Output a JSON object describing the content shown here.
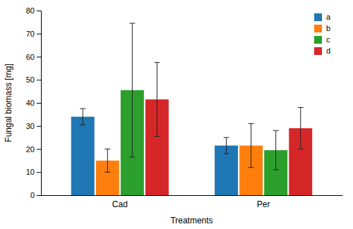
{
  "chart_data": {
    "type": "bar",
    "xlabel": "Treatments",
    "ylabel": "Fungal biomass [mg]",
    "categories": [
      "Cad",
      "Per"
    ],
    "series": [
      {
        "name": "a",
        "values": [
          34.0,
          21.5
        ],
        "errors": [
          3.5,
          3.5
        ]
      },
      {
        "name": "b",
        "values": [
          15.0,
          21.5
        ],
        "errors": [
          5.0,
          9.5
        ]
      },
      {
        "name": "c",
        "values": [
          45.5,
          19.5
        ],
        "errors": [
          29.0,
          8.5
        ]
      },
      {
        "name": "d",
        "values": [
          41.5,
          29.0
        ],
        "errors": [
          16.0,
          9.0
        ]
      }
    ],
    "ylim": [
      0,
      80
    ],
    "yticks": [
      0,
      10,
      20,
      30,
      40,
      50,
      60,
      70,
      80
    ],
    "grid": false,
    "legend": "upper right"
  }
}
